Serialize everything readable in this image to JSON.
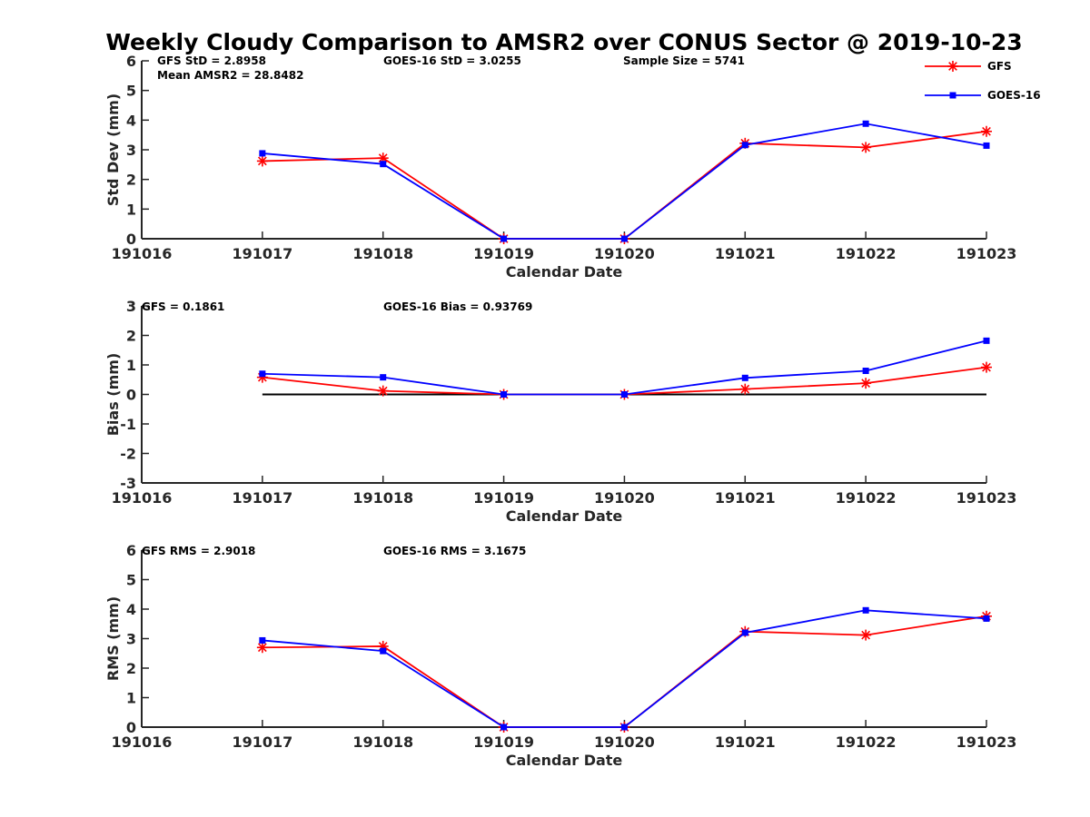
{
  "chart_data": [
    {
      "type": "line",
      "title": "Weekly Cloudy Comparison to AMSR2 over CONUS Sector @ 2019-10-23",
      "categories": [
        "191016",
        "191017",
        "191018",
        "191019",
        "191020",
        "191021",
        "191022",
        "191023"
      ],
      "xlabel": "Calendar Date",
      "ylabel": "Std Dev (mm)",
      "ylim": [
        0,
        6
      ],
      "yticks": [
        "0",
        "1",
        "2",
        "3",
        "4",
        "5",
        "6"
      ],
      "series": [
        {
          "name": "GFS",
          "color": "#ff0000",
          "marker": "asterisk",
          "values": [
            null,
            2.62,
            2.72,
            0.0,
            0.0,
            3.22,
            3.08,
            3.62
          ]
        },
        {
          "name": "GOES-16",
          "color": "#0000ff",
          "marker": "square",
          "values": [
            null,
            2.88,
            2.52,
            0.0,
            0.0,
            3.16,
            3.88,
            3.14
          ]
        }
      ],
      "annotations": [
        "GFS StD = 2.8958",
        "Mean AMSR2 = 28.8482",
        "GOES-16 StD = 3.0255",
        "Sample Size = 5741"
      ],
      "legend": {
        "position": "top-right",
        "entries": [
          "GFS",
          "GOES-16"
        ]
      }
    },
    {
      "type": "line",
      "categories": [
        "191016",
        "191017",
        "191018",
        "191019",
        "191020",
        "191021",
        "191022",
        "191023"
      ],
      "xlabel": "Calendar Date",
      "ylabel": "Bias (mm)",
      "ylim": [
        -3,
        3
      ],
      "yticks": [
        "-3",
        "-2",
        "-1",
        "0",
        "1",
        "2",
        "3"
      ],
      "reference_line": 0,
      "series": [
        {
          "name": "GFS",
          "color": "#ff0000",
          "marker": "asterisk",
          "values": [
            null,
            0.58,
            0.12,
            0.0,
            0.0,
            0.18,
            0.38,
            0.92
          ]
        },
        {
          "name": "GOES-16",
          "color": "#0000ff",
          "marker": "square",
          "values": [
            null,
            0.7,
            0.58,
            0.0,
            0.0,
            0.56,
            0.8,
            1.82
          ]
        }
      ],
      "annotations": [
        "GFS = 0.1861",
        "GOES-16 Bias  = 0.93769"
      ]
    },
    {
      "type": "line",
      "categories": [
        "191016",
        "191017",
        "191018",
        "191019",
        "191020",
        "191021",
        "191022",
        "191023"
      ],
      "xlabel": "Calendar Date",
      "ylabel": "RMS (mm)",
      "ylim": [
        0,
        6
      ],
      "yticks": [
        "0",
        "1",
        "2",
        "3",
        "4",
        "5",
        "6"
      ],
      "series": [
        {
          "name": "GFS",
          "color": "#ff0000",
          "marker": "asterisk",
          "values": [
            null,
            2.7,
            2.74,
            0.0,
            0.0,
            3.24,
            3.12,
            3.76
          ]
        },
        {
          "name": "GOES-16",
          "color": "#0000ff",
          "marker": "square",
          "values": [
            null,
            2.94,
            2.58,
            0.0,
            0.0,
            3.2,
            3.96,
            3.68
          ]
        }
      ],
      "annotations": [
        "GFS RMS = 2.9018",
        "GOES-16 RMS = 3.1675"
      ]
    }
  ]
}
